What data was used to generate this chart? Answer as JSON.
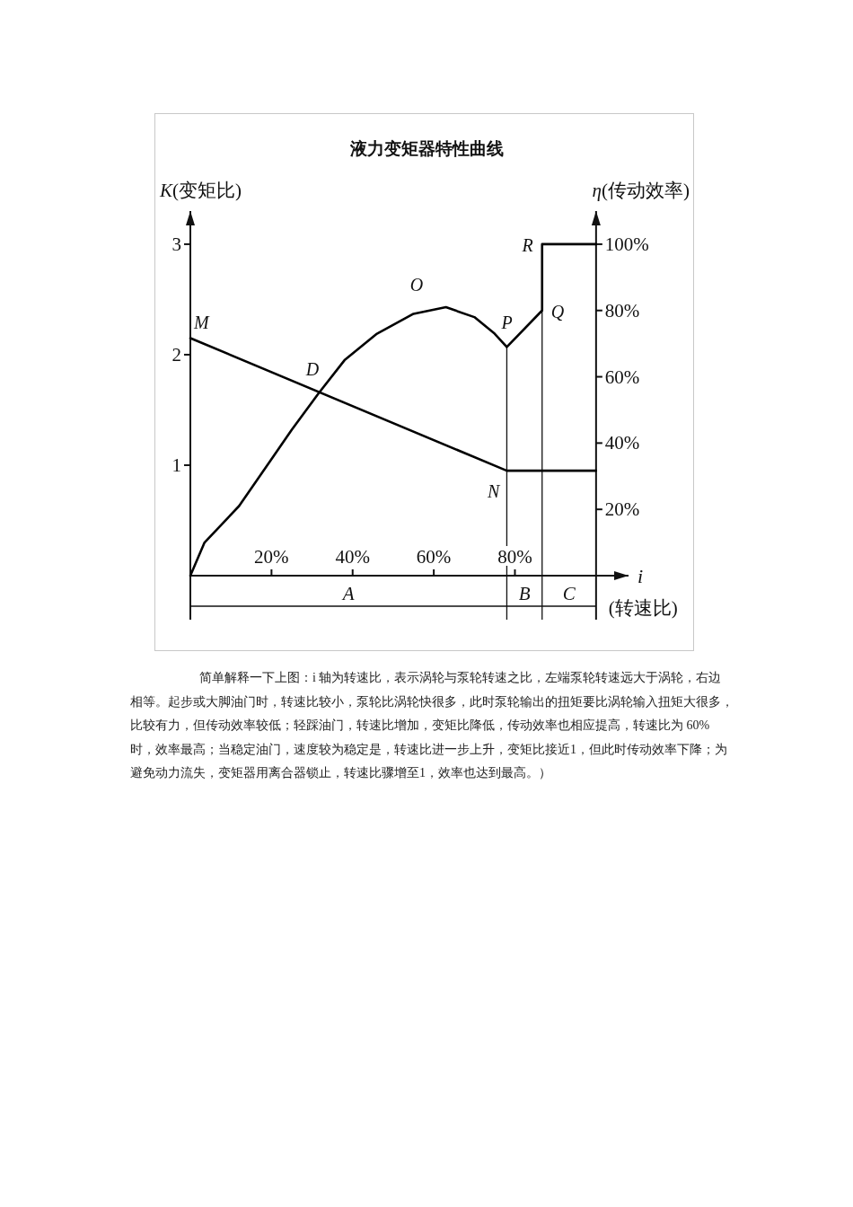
{
  "chart_data": {
    "type": "line",
    "title": "液力变矩器特性曲线",
    "ylabel": "*K*(变矩比)",
    "y2label": "*η*(传动效率)",
    "xlabel": "*i*",
    "x": [
      0,
      78,
      100
    ],
    "series": [
      {
        "color": "#000000",
        "values": [
          2.15,
          0.95,
          0.95
        ]
      },
      {
        "color": "#000000",
        "axis": "y2",
        "x": [
          0,
          3.5,
          12,
          25,
          31.6,
          38,
          46,
          55,
          63,
          70,
          75,
          78,
          86.7,
          86.7,
          100
        ],
        "values": [
          0,
          10,
          21,
          44,
          55,
          65,
          73,
          79,
          81,
          78,
          73,
          69,
          80,
          100,
          100
        ]
      }
    ],
    "xlim": [
      0,
      108
    ],
    "ylim": [
      0,
      3.3
    ],
    "y2lim": [
      0,
      110
    ],
    "xticks": [
      {
        "value": 20,
        "label": "20%"
      },
      {
        "value": 40,
        "label": "40%"
      },
      {
        "value": 60,
        "label": "60%"
      },
      {
        "value": 80,
        "label": "80%"
      }
    ],
    "yticks": [
      1,
      2,
      3
    ],
    "y2ticks": [
      {
        "value": 20,
        "label": "20%"
      },
      {
        "value": 40,
        "label": "40%"
      },
      {
        "value": 60,
        "label": "60%"
      },
      {
        "value": 80,
        "label": "80%"
      },
      {
        "value": 100,
        "label": "100%"
      }
    ],
    "ref_lines": [
      {
        "axis": "x",
        "value": 78
      },
      {
        "axis": "x",
        "value": 86.7
      }
    ],
    "annotations": [
      {
        "text": "*M*",
        "x": 0,
        "y": 2.15
      },
      {
        "text": "*D*",
        "x": 31.6,
        "y": 1.68
      },
      {
        "text": "*O*",
        "x": 63,
        "y": 2.43
      },
      {
        "text": "*P*",
        "x": 78,
        "y": 2.07
      },
      {
        "text": "*Q*",
        "x": 86.7,
        "y": 2.4
      },
      {
        "text": "*R*",
        "x": 86.7,
        "y": 3.0
      },
      {
        "text": "*N*",
        "x": 78,
        "y": 0.95
      },
      "*A*",
      "*B*",
      "*C*",
      "(转速比)",
      "简单解释一下上图：i 轴为转速比，表示涡轮与泵轮转速之比，左端泵轮转速远大于涡轮，右边相等。起步或大脚油门时，转速比较小，泵轮比涡轮快很多，此时泵轮输出的扭矩要比涡轮输入扭矩大很多，比较有力，但传动效率较低；轻踩油门，转速比增加，变矩比降低，传动效率也相应提高，转速比为 60%时，效率最高；当稳定油门，速度较为稳定是，转速比进一步上升，变矩比接近1，但此时传动效率下降；为避免动力流失，变矩器用离合器锁止，转速比骤增至1，效率也达到最高。）"
    ]
  }
}
